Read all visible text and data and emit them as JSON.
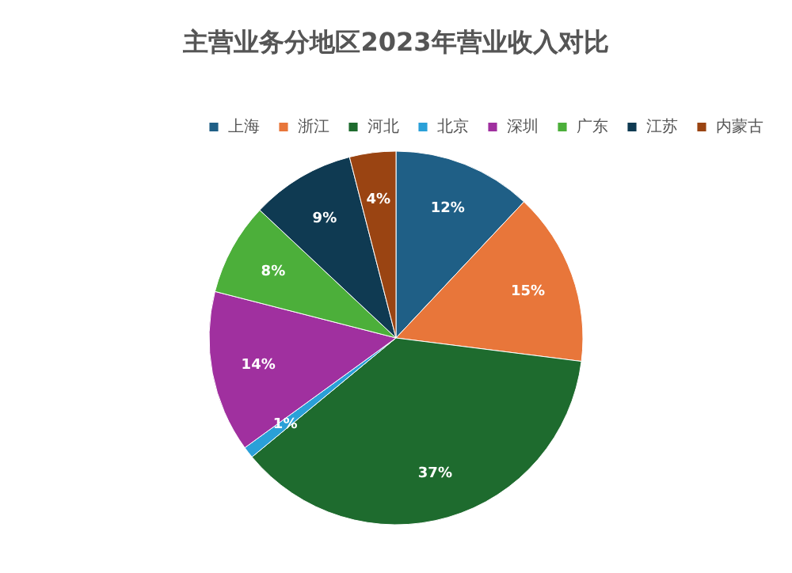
{
  "chart_data": {
    "type": "pie",
    "title": "主营业务分地区2023年营业收入对比",
    "categories": [
      "上海",
      "浙江",
      "河北",
      "北京",
      "深圳",
      "广东",
      "江苏",
      "内蒙古"
    ],
    "values": [
      12,
      15,
      37,
      1,
      14,
      8,
      9,
      4
    ],
    "colors": [
      "#1f5f86",
      "#e8763a",
      "#1e6b2e",
      "#2aa0d8",
      "#a0309f",
      "#4caf3a",
      "#0f3a52",
      "#9a4412"
    ],
    "value_labels": [
      "12%",
      "15%",
      "37%",
      "1%",
      "14%",
      "8%",
      "9%",
      "4%"
    ],
    "legend": "top"
  }
}
